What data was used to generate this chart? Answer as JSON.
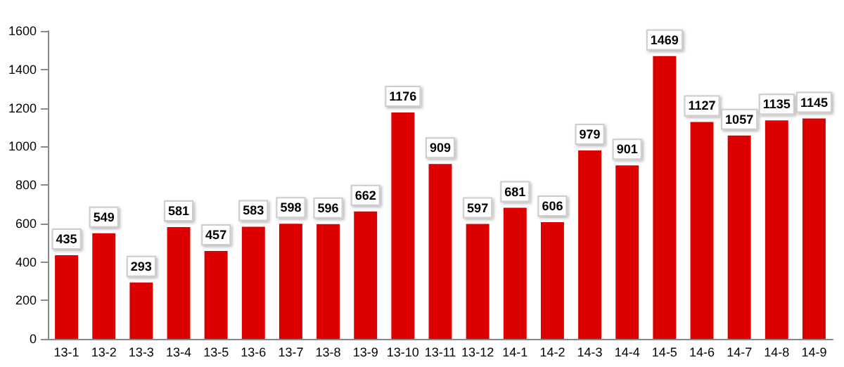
{
  "chart_data": {
    "type": "bar",
    "categories": [
      "13-1",
      "13-2",
      "13-3",
      "13-4",
      "13-5",
      "13-6",
      "13-7",
      "13-8",
      "13-9",
      "13-10",
      "13-11",
      "13-12",
      "14-1",
      "14-2",
      "14-3",
      "14-4",
      "14-5",
      "14-6",
      "14-7",
      "14-8",
      "14-9"
    ],
    "values": [
      435,
      549,
      293,
      581,
      457,
      583,
      598,
      596,
      662,
      1176,
      909,
      597,
      681,
      606,
      979,
      901,
      1469,
      1127,
      1057,
      1135,
      1145
    ],
    "color": "#dd0000",
    "ylim": [
      0,
      1600
    ],
    "yticks": [
      0,
      200,
      400,
      600,
      800,
      1000,
      1200,
      1400,
      1600
    ],
    "grid": false,
    "data_labels": true
  }
}
